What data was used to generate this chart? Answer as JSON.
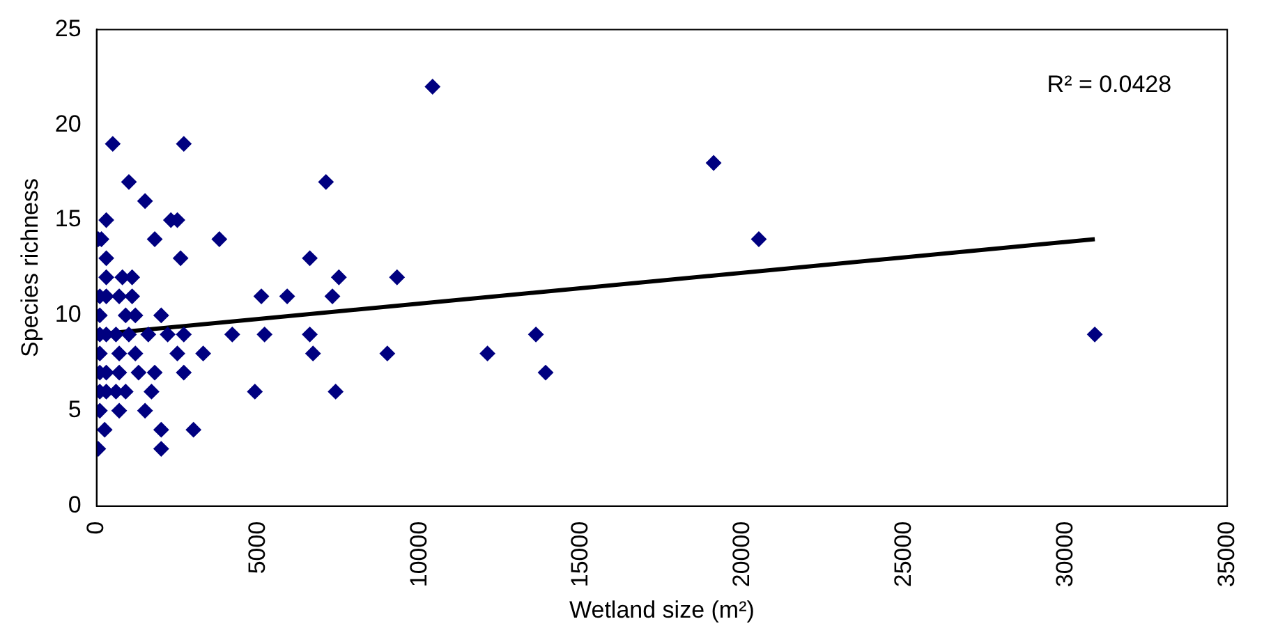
{
  "chart_data": {
    "type": "scatter",
    "xlabel": "Wetland size (m²)",
    "ylabel": "Species richness",
    "xlim": [
      0,
      35000
    ],
    "xticks": [
      0,
      5000,
      10000,
      15000,
      20000,
      25000,
      30000,
      35000
    ],
    "ylim": [
      0,
      25
    ],
    "yticks": [
      0,
      5,
      10,
      15,
      20,
      25
    ],
    "grid": false,
    "legend": false,
    "marker": "diamond",
    "annotations": [
      "R² = 0.0428"
    ],
    "series": [
      {
        "type": "scatter",
        "color": "#000080",
        "x": [
          50,
          100,
          100,
          100,
          100,
          100,
          100,
          100,
          150,
          50,
          300,
          300,
          300,
          300,
          300,
          300,
          300,
          250,
          500,
          600,
          600,
          700,
          700,
          700,
          700,
          800,
          900,
          900,
          1000,
          1000,
          1100,
          1100,
          1200,
          1200,
          1300,
          1500,
          1500,
          1600,
          1700,
          1800,
          1800,
          2000,
          2000,
          2000,
          2200,
          2300,
          2500,
          2500,
          2600,
          2700,
          2700,
          2700,
          3000,
          3300,
          3800,
          4200,
          4900,
          5100,
          5200,
          5900,
          6600,
          6600,
          6700,
          7100,
          7300,
          7400,
          7500,
          9000,
          9300,
          10400,
          12100,
          13600,
          13900,
          19100,
          20500,
          30900
        ],
        "values": [
          3,
          5,
          6,
          7,
          8,
          9,
          10,
          11,
          14,
          14,
          15,
          13,
          12,
          11,
          9,
          7,
          6,
          4,
          19,
          9,
          6,
          5,
          7,
          8,
          11,
          12,
          10,
          6,
          17,
          9,
          12,
          11,
          10,
          8,
          7,
          16,
          5,
          9,
          6,
          7,
          14,
          4,
          3,
          10,
          9,
          15,
          15,
          8,
          13,
          19,
          9,
          7,
          4,
          8,
          14,
          9,
          6,
          11,
          9,
          11,
          9,
          13,
          8,
          17,
          11,
          6,
          12,
          8,
          12,
          22,
          8,
          9,
          7,
          18,
          14,
          9
        ]
      },
      {
        "type": "line",
        "color": "#000000",
        "line_style": "solid",
        "marker": "none",
        "x": [
          0,
          30900
        ],
        "values": [
          9.0,
          14.0
        ]
      }
    ]
  }
}
